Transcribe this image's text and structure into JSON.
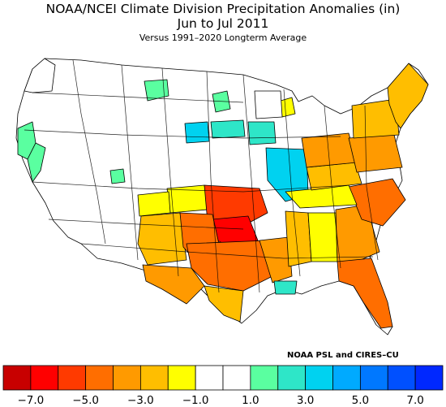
{
  "header": {
    "title": "NOAA/NCEI Climate Division Precipitation Anomalies (in)",
    "period": "Jun to Jul 2011",
    "subtitle": "Versus 1991–2020 Longterm Average"
  },
  "credit": "NOAA PSL and CIRES–CU",
  "legend": {
    "colors": [
      "#c80000",
      "#ff0000",
      "#ff3a00",
      "#ff6e00",
      "#ff9a00",
      "#ffbe00",
      "#ffff00",
      "#ffffff",
      "#ffffff",
      "#5affa0",
      "#2ee6c8",
      "#00d2f0",
      "#00aaff",
      "#0078ff",
      "#0050ff",
      "#0028ff"
    ],
    "ticks": [
      "−7.0",
      "−5.0",
      "−3.0",
      "−1.0",
      "1.0",
      "3.0",
      "5.0",
      "7.0"
    ]
  },
  "map": {
    "regions": [
      {
        "name": "washington-coast",
        "fill": "#ffffff"
      },
      {
        "name": "california-north-coast",
        "fill": "#5affa0"
      },
      {
        "name": "california-sierra",
        "fill": "#5affa0"
      },
      {
        "name": "utah-west",
        "fill": "#5affa0"
      },
      {
        "name": "montana-north",
        "fill": "#5affa0"
      },
      {
        "name": "north-dakota-east",
        "fill": "#5affa0"
      },
      {
        "name": "south-dakota-central",
        "fill": "#00d2f0"
      },
      {
        "name": "nebraska-north",
        "fill": "#2ee6c8"
      },
      {
        "name": "iowa-east",
        "fill": "#2ee6c8"
      },
      {
        "name": "illinois-west",
        "fill": "#00d2f0"
      },
      {
        "name": "kansas-west",
        "fill": "#ffff00"
      },
      {
        "name": "colorado-east",
        "fill": "#ffff00"
      },
      {
        "name": "new-mexico-east",
        "fill": "#ffbe00"
      },
      {
        "name": "oklahoma-central",
        "fill": "#ff3a00"
      },
      {
        "name": "oklahoma-south",
        "fill": "#ff0000"
      },
      {
        "name": "texas-north",
        "fill": "#ff6e00"
      },
      {
        "name": "texas-central",
        "fill": "#ff6e00"
      },
      {
        "name": "texas-west",
        "fill": "#ff9a00"
      },
      {
        "name": "texas-south",
        "fill": "#ffbe00"
      },
      {
        "name": "louisiana",
        "fill": "#ff9a00"
      },
      {
        "name": "louisiana-south",
        "fill": "#2ee6c8"
      },
      {
        "name": "mississippi",
        "fill": "#ffbe00"
      },
      {
        "name": "alabama",
        "fill": "#ffff00"
      },
      {
        "name": "georgia",
        "fill": "#ff9a00"
      },
      {
        "name": "florida",
        "fill": "#ff6e00"
      },
      {
        "name": "carolinas",
        "fill": "#ff6e00"
      },
      {
        "name": "tennessee",
        "fill": "#ffff00"
      },
      {
        "name": "kentucky",
        "fill": "#ffbe00"
      },
      {
        "name": "indiana-ohio",
        "fill": "#ff9a00"
      },
      {
        "name": "mid-atlantic",
        "fill": "#ff9a00"
      },
      {
        "name": "new-york",
        "fill": "#ffbe00"
      },
      {
        "name": "new-england",
        "fill": "#ffbe00"
      },
      {
        "name": "michigan-south",
        "fill": "#ffff00"
      },
      {
        "name": "wisconsin",
        "fill": "#ffffff"
      }
    ]
  }
}
